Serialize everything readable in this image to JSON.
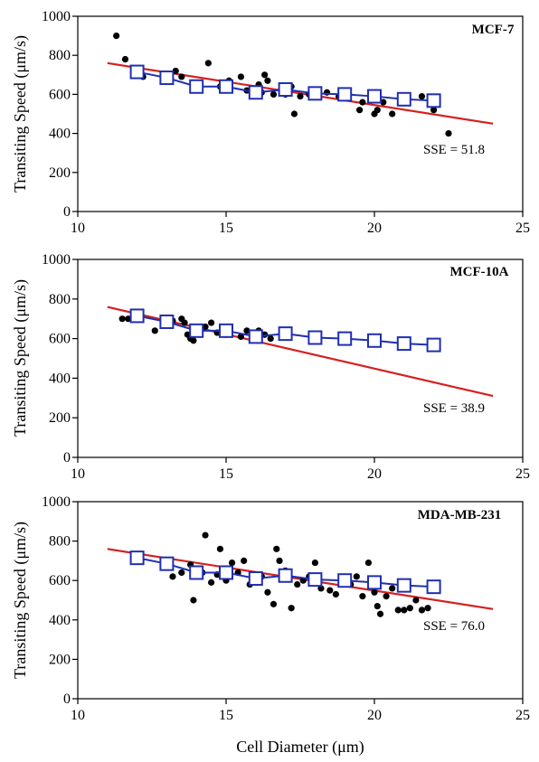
{
  "chart_data": [
    {
      "type": "scatter",
      "title": "MCF-7",
      "ylabel": "Transiting Speed (μm/s)",
      "xlabel": "",
      "xlim": [
        10,
        25
      ],
      "ylim": [
        0,
        1000
      ],
      "xticks": [
        10,
        15,
        20,
        25
      ],
      "yticks": [
        0,
        200,
        400,
        600,
        800,
        1000
      ],
      "annotation": "SSE = 51.8",
      "fit_line": {
        "x": [
          11,
          24
        ],
        "y": [
          760,
          450
        ],
        "color": "#d62020"
      },
      "model_series": {
        "color": "#1f2fb0",
        "x": [
          12,
          13,
          14,
          15,
          16,
          17,
          18,
          19,
          20,
          21,
          22
        ],
        "y": [
          715,
          685,
          640,
          640,
          610,
          625,
          605,
          600,
          590,
          575,
          568
        ]
      },
      "scatter": {
        "color": "#000000",
        "x": [
          11.3,
          11.6,
          12.2,
          13.3,
          13.5,
          14.0,
          14.4,
          14.8,
          15.1,
          15.5,
          15.7,
          16.1,
          16.2,
          16.3,
          16.4,
          16.6,
          17.0,
          17.2,
          17.3,
          17.5,
          17.8,
          18.0,
          18.4,
          18.8,
          19.5,
          19.6,
          19.9,
          20.0,
          20.1,
          20.3,
          20.6,
          21.6,
          22.0,
          22.5
        ],
        "y": [
          900,
          780,
          690,
          720,
          690,
          620,
          760,
          640,
          670,
          690,
          620,
          650,
          610,
          700,
          670,
          600,
          600,
          640,
          500,
          590,
          600,
          620,
          610,
          590,
          520,
          560,
          580,
          500,
          520,
          560,
          500,
          590,
          520,
          400
        ]
      }
    },
    {
      "type": "scatter",
      "title": "MCF-10A",
      "ylabel": "Transiting Speed (μm/s)",
      "xlabel": "",
      "xlim": [
        10,
        25
      ],
      "ylim": [
        0,
        1000
      ],
      "xticks": [
        10,
        15,
        20,
        25
      ],
      "yticks": [
        0,
        200,
        400,
        600,
        800,
        1000
      ],
      "annotation": "SSE = 38.9",
      "fit_line": {
        "x": [
          11,
          24
        ],
        "y": [
          760,
          310
        ],
        "color": "#d62020"
      },
      "model_series": {
        "color": "#1f2fb0",
        "x": [
          12,
          13,
          14,
          15,
          16,
          17,
          18,
          19,
          20,
          21,
          22
        ],
        "y": [
          715,
          685,
          640,
          640,
          610,
          625,
          605,
          600,
          590,
          575,
          568
        ]
      },
      "scatter": {
        "color": "#000000",
        "x": [
          11.5,
          11.7,
          12.6,
          12.9,
          13.0,
          13.2,
          13.5,
          13.6,
          13.7,
          13.8,
          13.9,
          14.0,
          14.1,
          14.3,
          14.5,
          14.7,
          15.0,
          15.5,
          15.7,
          15.9,
          16.1,
          16.3,
          16.5
        ],
        "y": [
          700,
          700,
          640,
          700,
          680,
          690,
          700,
          680,
          620,
          600,
          590,
          650,
          640,
          660,
          680,
          630,
          620,
          610,
          640,
          610,
          640,
          620,
          600
        ]
      }
    },
    {
      "type": "scatter",
      "title": "MDA-MB-231",
      "ylabel": "Transiting Speed (μm/s)",
      "xlabel": "Cell Diameter (μm)",
      "xlim": [
        10,
        25
      ],
      "ylim": [
        0,
        1000
      ],
      "xticks": [
        10,
        15,
        20,
        25
      ],
      "yticks": [
        0,
        200,
        400,
        600,
        800,
        1000
      ],
      "annotation": "SSE = 76.0",
      "fit_line": {
        "x": [
          11,
          24
        ],
        "y": [
          760,
          455
        ],
        "color": "#d62020"
      },
      "model_series": {
        "color": "#1f2fb0",
        "x": [
          12,
          13,
          14,
          15,
          16,
          17,
          18,
          19,
          20,
          21,
          22
        ],
        "y": [
          715,
          685,
          640,
          640,
          610,
          625,
          605,
          600,
          590,
          575,
          568
        ]
      },
      "scatter": {
        "color": "#000000",
        "x": [
          13.2,
          13.5,
          13.8,
          13.9,
          14.0,
          14.2,
          14.3,
          14.5,
          14.7,
          14.8,
          15.0,
          15.2,
          15.4,
          15.6,
          15.8,
          16.0,
          16.2,
          16.4,
          16.6,
          16.7,
          16.8,
          16.9,
          17.0,
          17.2,
          17.4,
          17.6,
          17.8,
          18.0,
          18.2,
          18.5,
          18.7,
          18.9,
          19.2,
          19.4,
          19.6,
          19.8,
          20.0,
          20.1,
          20.2,
          20.4,
          20.6,
          20.8,
          21.0,
          21.2,
          21.4,
          21.6,
          21.8
        ],
        "y": [
          620,
          640,
          680,
          500,
          620,
          640,
          830,
          590,
          630,
          760,
          600,
          690,
          640,
          700,
          580,
          600,
          620,
          540,
          480,
          760,
          700,
          630,
          650,
          460,
          580,
          600,
          620,
          690,
          560,
          550,
          530,
          600,
          580,
          620,
          520,
          690,
          540,
          470,
          430,
          520,
          560,
          450,
          450,
          460,
          500,
          450,
          460
        ]
      }
    }
  ]
}
